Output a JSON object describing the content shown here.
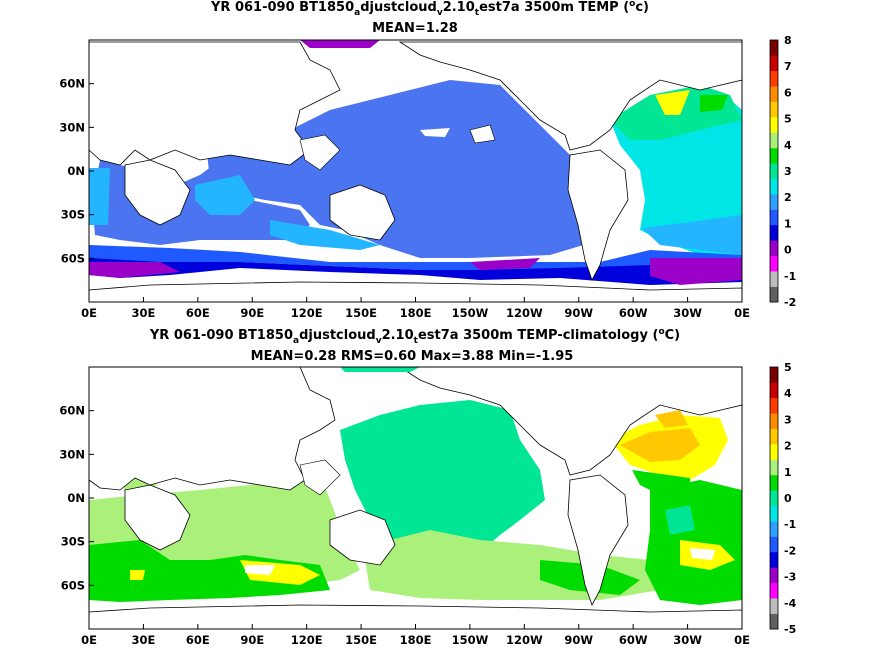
{
  "panel1": {
    "title_line1": "YR 061-090 BT1850",
    "title_sub_a": "a",
    "title_mid1": "djustcloud",
    "title_sub_v": "v",
    "title_mid2": "2.10",
    "title_sub_t": "t",
    "title_end": "est7a 3500m TEMP (",
    "title_sup": "o",
    "title_unit": "c)",
    "stats": "MEAN=1.28",
    "colorbar_ticks": [
      "8",
      "7",
      "6",
      "5",
      "4",
      "3",
      "2",
      "1",
      "0",
      "-1",
      "-2"
    ]
  },
  "panel2": {
    "title_line1": "YR 061-090 BT1850",
    "title_sub_a": "a",
    "title_mid1": "djustcloud",
    "title_sub_v": "v",
    "title_mid2": "2.10",
    "title_sub_t": "t",
    "title_end": "est7a 3500m TEMP-climatology (",
    "title_sup": "o",
    "title_unit": "C)",
    "stats": "MEAN=0.28   RMS=0.60   Max=3.88   Min=-1.95",
    "colorbar_ticks": [
      "5",
      "4",
      "3",
      "2",
      "1",
      "0",
      "-1",
      "-2",
      "-3",
      "-4",
      "-5"
    ]
  },
  "lon_ticks": [
    "0E",
    "30E",
    "60E",
    "90E",
    "120E",
    "150E",
    "180E",
    "150W",
    "120W",
    "90W",
    "60W",
    "30W",
    "0E"
  ],
  "lat_ticks": [
    "60N",
    "30N",
    "0N",
    "30S",
    "60S"
  ],
  "colors": {
    "colorbar": [
      "#606060",
      "#bdbdbd",
      "#ff00ff",
      "#9a00c8",
      "#0000dc",
      "#1e5aff",
      "#2ea0ff",
      "#00e6e6",
      "#00e695",
      "#00dc00",
      "#aaf07a",
      "#ffff00",
      "#ffc800",
      "#ff8c00",
      "#ff3c00",
      "#c80000",
      "#780000"
    ],
    "land": "#ffffff",
    "coast": "#000000"
  }
}
